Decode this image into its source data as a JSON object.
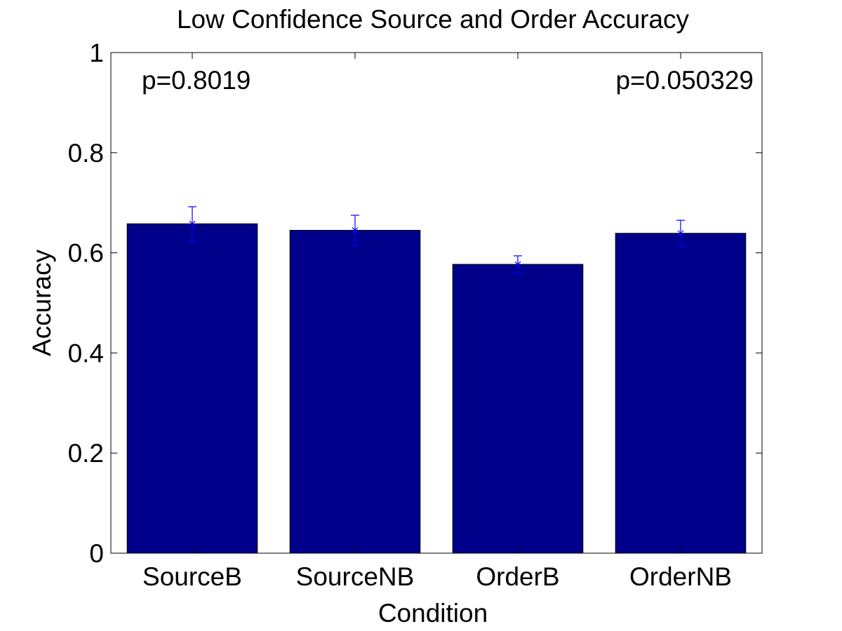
{
  "chart_data": {
    "type": "bar",
    "title": "Low Confidence Source and Order Accuracy",
    "xlabel": "Condition",
    "ylabel": "Accuracy",
    "categories": [
      "SourceB",
      "SourceNB",
      "OrderB",
      "OrderNB"
    ],
    "values": [
      0.658,
      0.645,
      0.577,
      0.639
    ],
    "error_low": [
      0.625,
      0.615,
      0.56,
      0.613
    ],
    "error_high": [
      0.692,
      0.675,
      0.594,
      0.665
    ],
    "ylim": [
      0,
      1
    ],
    "yticks": [
      0,
      0.2,
      0.4,
      0.6,
      0.8,
      1
    ],
    "ytick_labels": [
      "0",
      "0.2",
      "0.4",
      "0.6",
      "0.8",
      "1"
    ],
    "grid": false,
    "annotations": [
      {
        "text": "p=0.8019",
        "position": "top-left"
      },
      {
        "text": "p=0.050329",
        "position": "top-right"
      }
    ],
    "colors": {
      "bar": "#00008B",
      "error_bar": "#0000FF",
      "axis": "#000000"
    }
  }
}
